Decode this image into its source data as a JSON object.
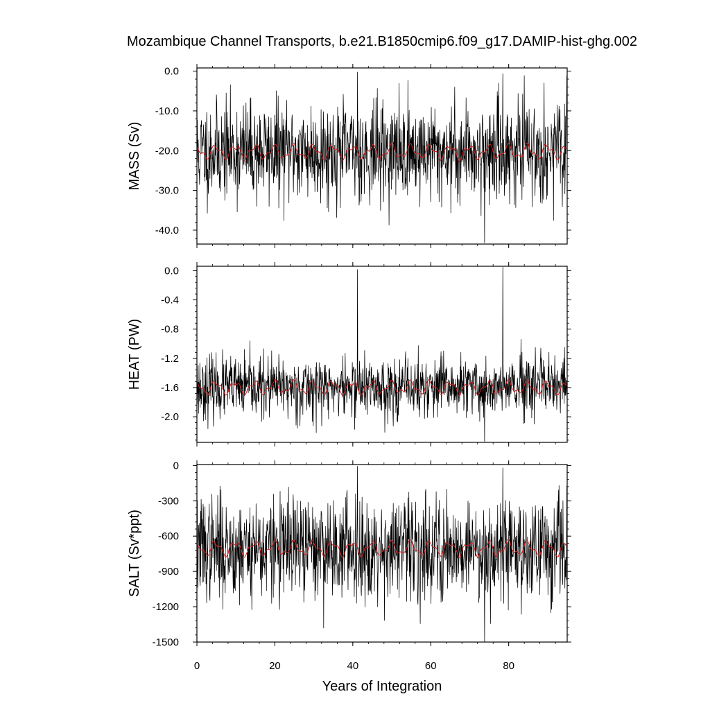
{
  "title": "Mozambique Channel Transports, b.e21.B1850cmip6.f09_g17.DAMIP-hist-ghg.002",
  "xlabel": "Years of Integration",
  "chart_data": [
    {
      "type": "line",
      "ylabel": "MASS (Sv)",
      "xlim": [
        0,
        95
      ],
      "ylim": [
        -43.5,
        0.8
      ],
      "yticks": [
        0,
        -10,
        -20,
        -30,
        -40
      ],
      "ytick_labels": [
        "0.0",
        "-10.0",
        "-20.0",
        "-30.0",
        "-40.0"
      ],
      "xticks": [
        0,
        20,
        40,
        60,
        80
      ],
      "xtick_labels": [],
      "monthly": {
        "mean": -20.2,
        "amplitude": 6.5,
        "seed": 11,
        "min": -43.2,
        "max": -0.2,
        "spike_min_x": 73.8,
        "spike_max_x": 41.2,
        "spike_max2_x": 78.5
      },
      "smoothed": {
        "mean": -20.3,
        "amplitude": 1.6
      },
      "series": [
        {
          "color": "#000000"
        },
        {
          "color": "#cc2222"
        }
      ]
    },
    {
      "type": "line",
      "ylabel": "HEAT (PW)",
      "xlim": [
        0,
        95
      ],
      "ylim": [
        -2.35,
        0.06
      ],
      "yticks": [
        0,
        -0.4,
        -0.8,
        -1.2,
        -1.6,
        -2.0
      ],
      "ytick_labels": [
        "0.0",
        "-0.4",
        "-0.8",
        "-1.2",
        "-1.6",
        "-2.0"
      ],
      "xticks": [
        0,
        20,
        40,
        60,
        80
      ],
      "xtick_labels": [],
      "monthly": {
        "mean": -1.6,
        "amplitude": 0.22,
        "seed": 23,
        "min": -2.34,
        "max": 0.05,
        "spike_min_x": 73.8,
        "spike_max_x": 78.5,
        "spike_max2_x": 41.2
      },
      "smoothed": {
        "mean": -1.6,
        "amplitude": 0.08
      },
      "series": [
        {
          "color": "#000000"
        },
        {
          "color": "#cc2222"
        }
      ]
    },
    {
      "type": "line",
      "ylabel": "SALT (Sv*ppt)",
      "xlim": [
        0,
        95
      ],
      "ylim": [
        -1500,
        8
      ],
      "yticks": [
        0,
        -300,
        -600,
        -900,
        -1200,
        -1500
      ],
      "ytick_labels": [
        "0",
        "-300",
        "-600",
        "-900",
        "-1200",
        "-1500"
      ],
      "xticks": [
        0,
        20,
        40,
        60,
        80
      ],
      "xtick_labels": [
        "0",
        "20",
        "40",
        "60",
        "80"
      ],
      "monthly": {
        "mean": -705,
        "amplitude": 230,
        "seed": 37,
        "min": -1500,
        "max": -5,
        "spike_min_x": 73.8,
        "spike_max_x": 41.2,
        "spike_max2_x": 78.5
      },
      "smoothed": {
        "mean": -705,
        "amplitude": 55
      },
      "series": [
        {
          "color": "#000000"
        },
        {
          "color": "#cc2222"
        }
      ]
    }
  ]
}
